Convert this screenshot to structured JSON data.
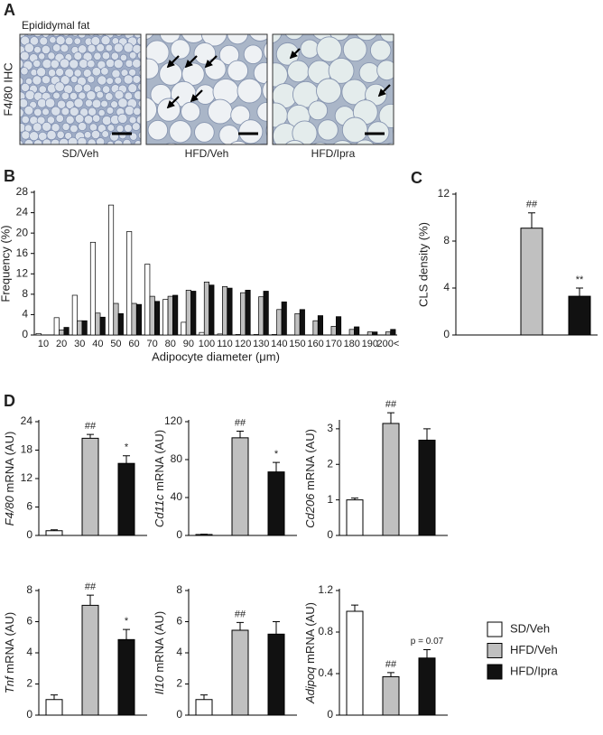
{
  "panel_a": {
    "letter": "A",
    "title": "Epididymal fat",
    "y_label": "F4/80 IHC",
    "captions": [
      "SD/Veh",
      "HFD/Veh",
      "HFD/Ipra"
    ]
  },
  "legend": {
    "labels": [
      "SD/Veh",
      "HFD/Veh",
      "HFD/Ipra"
    ],
    "colors": [
      "#ffffff",
      "#c0c0c0",
      "#111111"
    ]
  },
  "chart_data": [
    {
      "type": "grouped_bar",
      "panel": "B",
      "x_label": "Adipocyte diameter (μm)",
      "y_label": "Frequency (%)",
      "categories": [
        "10",
        "20",
        "30",
        "40",
        "50",
        "60",
        "70",
        "80",
        "90",
        "100",
        "110",
        "120",
        "130",
        "140",
        "150",
        "160",
        "170",
        "180",
        "190",
        "200<"
      ],
      "ylim": [
        0,
        28
      ],
      "yticks": [
        0,
        4,
        8,
        12,
        16,
        20,
        24,
        28
      ],
      "series": [
        {
          "name": "SD/Veh",
          "color": "#ffffff",
          "values": [
            0.3,
            3.4,
            7.8,
            18.2,
            25.5,
            20.3,
            13.9,
            7.0,
            2.5,
            0.5,
            0.2,
            0.1,
            0.1,
            0.1,
            0,
            0,
            0,
            0,
            0,
            0
          ]
        },
        {
          "name": "HFD/Veh",
          "color": "#c0c0c0",
          "values": [
            0,
            1.0,
            2.8,
            4.3,
            6.2,
            6.2,
            7.6,
            7.6,
            8.8,
            10.4,
            9.5,
            8.3,
            7.5,
            5.0,
            4.2,
            2.8,
            1.7,
            1.1,
            0.6,
            0.6
          ]
        },
        {
          "name": "HFD/Ipra",
          "color": "#111111",
          "values": [
            0,
            1.5,
            2.8,
            3.5,
            4.2,
            6.0,
            6.6,
            7.8,
            8.6,
            9.8,
            9.2,
            8.8,
            8.6,
            6.5,
            5.0,
            3.8,
            3.6,
            1.6,
            0.6,
            1.1
          ]
        }
      ]
    },
    {
      "type": "bar",
      "panel": "C",
      "y_label": "CLS density (%)",
      "categories": [
        null,
        null,
        null
      ],
      "values": [
        0,
        9.1,
        3.3
      ],
      "errors": [
        0,
        1.3,
        0.7
      ],
      "annotations": [
        null,
        "##",
        "**"
      ],
      "colors": [
        "#ffffff",
        "#c0c0c0",
        "#111111"
      ],
      "ylim": [
        0,
        12
      ],
      "yticks": [
        0,
        4,
        8,
        12
      ]
    },
    {
      "type": "bar",
      "panel": "D",
      "gene": "F4/80",
      "unit": " mRNA (AU)",
      "categories": [
        null,
        null,
        null
      ],
      "values": [
        1.0,
        20.5,
        15.2
      ],
      "errors": [
        0.2,
        0.8,
        1.6
      ],
      "annotations": [
        null,
        "##",
        "*"
      ],
      "colors": [
        "#ffffff",
        "#c0c0c0",
        "#111111"
      ],
      "ylim": [
        0,
        24
      ],
      "yticks": [
        0,
        6,
        12,
        18,
        24
      ]
    },
    {
      "type": "bar",
      "gene": "Cd11c",
      "unit": " mRNA (AU)",
      "categories": [
        null,
        null,
        null
      ],
      "values": [
        1,
        103,
        67
      ],
      "errors": [
        0.3,
        7,
        10
      ],
      "annotations": [
        null,
        "##",
        "*"
      ],
      "colors": [
        "#ffffff",
        "#c0c0c0",
        "#111111"
      ],
      "ylim": [
        0,
        120
      ],
      "yticks": [
        0,
        40,
        80,
        120
      ]
    },
    {
      "type": "bar",
      "gene": "Cd206",
      "unit": " mRNA (AU)",
      "categories": [
        null,
        null,
        null
      ],
      "values": [
        1.0,
        3.15,
        2.68
      ],
      "errors": [
        0.05,
        0.3,
        0.32
      ],
      "annotations": [
        null,
        "##",
        null
      ],
      "colors": [
        "#ffffff",
        "#c0c0c0",
        "#111111"
      ],
      "ylim": [
        0,
        3.2
      ],
      "yticks": [
        0,
        1,
        2,
        3
      ]
    },
    {
      "type": "bar",
      "gene": "Tnf",
      "unit": " mRNA (AU)",
      "categories": [
        null,
        null,
        null
      ],
      "values": [
        1.0,
        7.05,
        4.85
      ],
      "errors": [
        0.3,
        0.65,
        0.65
      ],
      "annotations": [
        null,
        "##",
        "*"
      ],
      "colors": [
        "#ffffff",
        "#c0c0c0",
        "#111111"
      ],
      "ylim": [
        0,
        8
      ],
      "yticks": [
        0,
        2,
        4,
        6,
        8
      ]
    },
    {
      "type": "bar",
      "gene": "Il10",
      "unit": " mRNA (AU)",
      "categories": [
        null,
        null,
        null
      ],
      "values": [
        1.0,
        5.45,
        5.2
      ],
      "errors": [
        0.3,
        0.5,
        0.8
      ],
      "annotations": [
        null,
        "##",
        null
      ],
      "colors": [
        "#ffffff",
        "#c0c0c0",
        "#111111"
      ],
      "ylim": [
        0,
        8
      ],
      "yticks": [
        0,
        2,
        4,
        6,
        8
      ]
    },
    {
      "type": "bar",
      "gene": "Adipoq",
      "unit": " mRNA (AU)",
      "categories": [
        null,
        null,
        null
      ],
      "values": [
        1.0,
        0.37,
        0.55
      ],
      "errors": [
        0.06,
        0.04,
        0.08
      ],
      "annotations": [
        null,
        "##",
        "p = 0.07"
      ],
      "colors": [
        "#ffffff",
        "#c0c0c0",
        "#111111"
      ],
      "ylim": [
        0,
        1.2
      ],
      "yticks": [
        0,
        0.4,
        0.8,
        1.2
      ]
    }
  ]
}
